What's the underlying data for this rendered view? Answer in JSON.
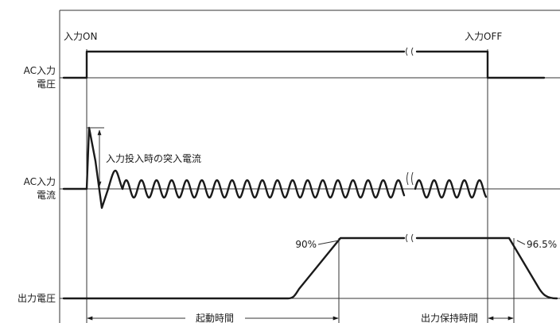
{
  "signals": {
    "ac_voltage": {
      "label_line1": "AC入力",
      "label_line2": "電圧"
    },
    "ac_current": {
      "label_line1": "AC入力",
      "label_line2": "電流"
    },
    "output_voltage": {
      "label": "出力電圧"
    }
  },
  "events": {
    "input_on": "入力ON",
    "input_off": "入力OFF"
  },
  "annotations": {
    "inrush_current": "入力投入時の突入電流",
    "rise_threshold": "90%",
    "hold_threshold": "96.5%"
  },
  "intervals": {
    "startup_time": "起動時間",
    "holdup_time": "出力保持時間"
  }
}
